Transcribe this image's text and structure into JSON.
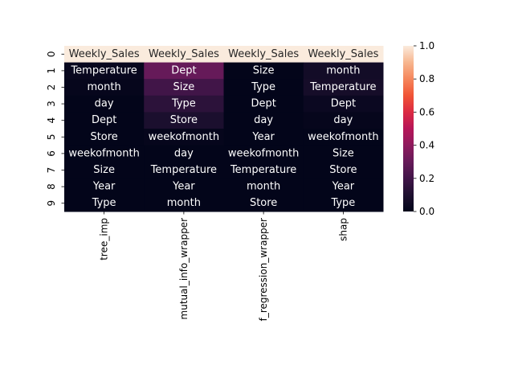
{
  "chart_data": {
    "type": "heatmap",
    "columns": [
      "tree_imp",
      "mutual_info_wrapper",
      "f_regression_wrapper",
      "shap"
    ],
    "rows": [
      "0",
      "1",
      "2",
      "3",
      "4",
      "5",
      "6",
      "7",
      "8",
      "9"
    ],
    "annotations": [
      [
        "Weekly_Sales",
        "Weekly_Sales",
        "Weekly_Sales",
        "Weekly_Sales"
      ],
      [
        "Temperature",
        "Dept",
        "Size",
        "month"
      ],
      [
        "month",
        "Size",
        "Type",
        "Temperature"
      ],
      [
        "day",
        "Type",
        "Dept",
        "Dept"
      ],
      [
        "Dept",
        "Store",
        "day",
        "day"
      ],
      [
        "Store",
        "weekofmonth",
        "Year",
        "weekofmonth"
      ],
      [
        "weekofmonth",
        "day",
        "weekofmonth",
        "Size"
      ],
      [
        "Size",
        "Temperature",
        "Temperature",
        "Store"
      ],
      [
        "Year",
        "Year",
        "month",
        "Year"
      ],
      [
        "Type",
        "month",
        "Store",
        "Type"
      ]
    ],
    "values": [
      [
        1.0,
        1.0,
        1.0,
        1.0
      ],
      [
        0.02,
        0.3,
        0.0,
        0.06
      ],
      [
        0.01,
        0.2,
        0.0,
        0.07
      ],
      [
        0.0,
        0.14,
        0.0,
        0.03
      ],
      [
        0.0,
        0.09,
        0.0,
        0.01
      ],
      [
        0.0,
        0.01,
        0.0,
        0.0
      ],
      [
        0.0,
        0.0,
        0.0,
        0.0
      ],
      [
        0.0,
        0.0,
        0.0,
        0.0
      ],
      [
        0.0,
        0.0,
        0.0,
        0.0
      ],
      [
        0.0,
        0.0,
        0.0,
        0.0
      ]
    ],
    "colormap": "rocket",
    "colorbar": {
      "min": 0.0,
      "max": 1.0,
      "ticks": [
        "0.0",
        "0.2",
        "0.4",
        "0.6",
        "0.8",
        "1.0"
      ]
    },
    "grid": false
  }
}
